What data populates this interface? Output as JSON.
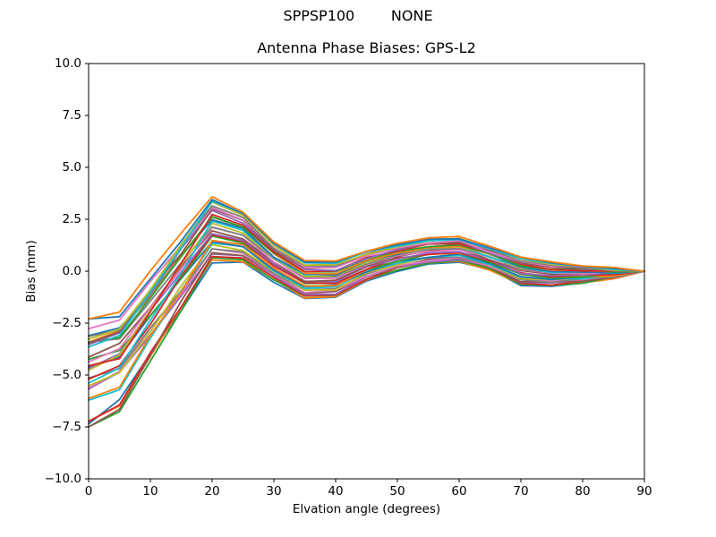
{
  "figure": {
    "suptitle": "SPPSP100        NONE",
    "background": "#ffffff",
    "text_color": "#000000"
  },
  "chart_data": {
    "type": "line",
    "title": "Antenna Phase Biases: GPS-L2",
    "xlabel": "Elvation angle (degrees)",
    "ylabel": "Bias (mm)",
    "xlim": [
      0,
      90
    ],
    "ylim": [
      -10.0,
      10.0
    ],
    "grid": false,
    "legend": "none",
    "x_tick_values": [
      0,
      10,
      20,
      30,
      40,
      50,
      60,
      70,
      80,
      90
    ],
    "x_tick_labels": [
      "0",
      "10",
      "20",
      "30",
      "40",
      "50",
      "60",
      "70",
      "80",
      "90"
    ],
    "y_tick_values": [
      10.0,
      7.5,
      5.0,
      2.5,
      0.0,
      -2.5,
      -5.0,
      -7.5,
      -10.0
    ],
    "y_tick_labels": [
      "10.0",
      "7.5",
      "5.0",
      "2.5",
      "0.0",
      "−2.5",
      "−5.0",
      "−7.5",
      "−10.0"
    ],
    "n_lines": 32,
    "x": [
      0,
      5,
      10,
      15,
      20,
      25,
      30,
      35,
      40,
      45,
      50,
      55,
      60,
      65,
      70,
      75,
      80,
      85,
      90
    ],
    "band_top": [
      -2.3,
      -2.0,
      -0.6,
      1.9,
      3.6,
      2.9,
      1.4,
      0.5,
      0.5,
      1.0,
      1.35,
      1.6,
      1.65,
      1.15,
      0.7,
      0.45,
      0.3,
      0.15,
      0.0
    ],
    "band_bottom": [
      -7.5,
      -6.6,
      -4.9,
      -2.0,
      0.4,
      0.4,
      -0.5,
      -1.35,
      -1.3,
      -0.5,
      0.0,
      0.3,
      0.45,
      0.05,
      -0.7,
      -0.75,
      -0.6,
      -0.35,
      0.0
    ],
    "start_spread": [
      -7.5,
      -2.3
    ],
    "converge_value_at_90": 0.0,
    "line_colors": [
      "#1f77b4",
      "#ff7f0e",
      "#2ca02c",
      "#d62728",
      "#9467bd",
      "#8c564b",
      "#e377c2",
      "#7f7f7f",
      "#bcbd22",
      "#17becf"
    ],
    "spine_color": "#000000"
  }
}
